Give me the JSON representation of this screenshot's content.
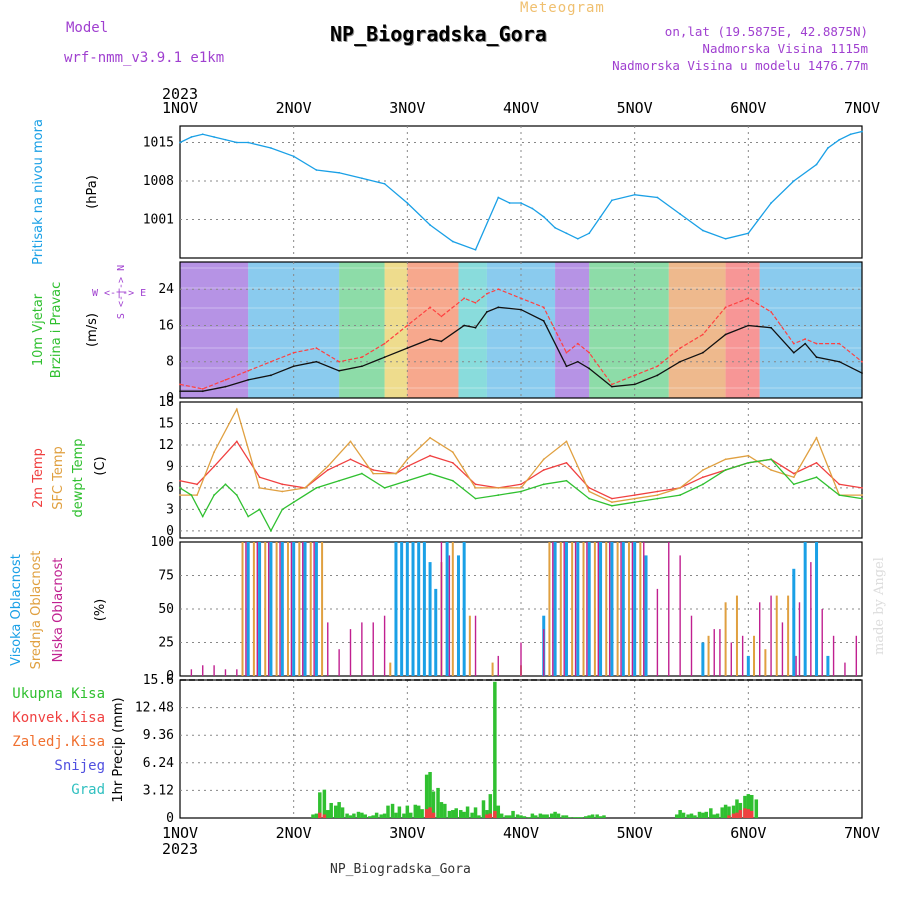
{
  "header": {
    "model_label": "Model",
    "model_value": "wrf-nmm_v3.9.1  e1km",
    "meteogram_label": "Meteogram",
    "station_title": "NP_Biogradska_Gora",
    "coords": "on,lat (19.5875E, 42.8875N)",
    "elevation": "Nadmorska Visina 1115m",
    "elevation_model": "Nadmorska Visina u modelu 1476.77m"
  },
  "footer": {
    "station_name": "NP_Biogradska_Gora",
    "signature": "made by Angel"
  },
  "axis": {
    "year": "2023",
    "ticks": [
      "1NOV",
      "2NOV",
      "3NOV",
      "4NOV",
      "5NOV",
      "6NOV",
      "7NOV"
    ]
  },
  "colors": {
    "pressure": "#1aa0e6",
    "wind_speed": "#111111",
    "gust": "#ff4040",
    "temp_2m": "#f04040",
    "temp_sfc": "#e0a040",
    "dewpoint": "#30c030",
    "cloud_high": "#1aa0e6",
    "cloud_mid": "#e0a040",
    "cloud_low": "#c02090",
    "precip_total": "#30c030",
    "precip_conv": "#f04040"
  },
  "chart_data": [
    {
      "type": "line",
      "panel": "pressure",
      "ylabel": [
        "Pritisak na nivou mora",
        "(hPa)"
      ],
      "yticks": [
        1001,
        1008,
        1015
      ],
      "ylim": [
        994,
        1018
      ],
      "xlim": [
        0,
        6
      ],
      "series": [
        {
          "name": "Pritisak na nivou mora",
          "x": [
            0,
            0.1,
            0.2,
            0.3,
            0.4,
            0.5,
            0.6,
            0.8,
            1.0,
            1.2,
            1.4,
            1.6,
            1.8,
            2.0,
            2.2,
            2.4,
            2.6,
            2.8,
            2.9,
            3.0,
            3.1,
            3.2,
            3.3,
            3.4,
            3.5,
            3.6,
            3.7,
            3.8,
            4.0,
            4.2,
            4.4,
            4.6,
            4.8,
            5.0,
            5.2,
            5.4,
            5.6,
            5.7,
            5.8,
            5.9,
            6.0
          ],
          "values": [
            1015,
            1016,
            1016.5,
            1016,
            1015.5,
            1015,
            1015,
            1014,
            1012.5,
            1010,
            1009.5,
            1008.5,
            1007.5,
            1004,
            1000,
            997,
            995.5,
            1005,
            1004,
            1004,
            1003,
            1001.5,
            999.5,
            998.5,
            997.5,
            998.5,
            1001.5,
            1004.5,
            1005.5,
            1005,
            1002,
            999,
            997.5,
            998.5,
            1004,
            1008,
            1011,
            1014,
            1015.5,
            1016.5,
            1017
          ]
        }
      ]
    },
    {
      "type": "line",
      "panel": "wind",
      "ylabel": [
        "10m Vjetar",
        "Brzina i Pravac",
        "(m/s)"
      ],
      "yticks": [
        0,
        8,
        16,
        24
      ],
      "ylim": [
        0,
        30
      ],
      "xlim": [
        0,
        6
      ],
      "series": [
        {
          "name": "Brzina",
          "x": [
            0,
            0.2,
            0.4,
            0.6,
            0.8,
            1.0,
            1.2,
            1.4,
            1.6,
            1.8,
            2.0,
            2.2,
            2.3,
            2.5,
            2.6,
            2.7,
            2.8,
            3.0,
            3.2,
            3.4,
            3.5,
            3.6,
            3.8,
            4.0,
            4.2,
            4.4,
            4.6,
            4.8,
            5.0,
            5.2,
            5.4,
            5.5,
            5.6,
            5.8,
            6.0
          ],
          "values": [
            1.5,
            1.5,
            2.5,
            4,
            5,
            7,
            8,
            6,
            7,
            9,
            11,
            13,
            12.5,
            16,
            15.5,
            19,
            20,
            19.5,
            17,
            7,
            8,
            6.5,
            2.5,
            3,
            5,
            8,
            10,
            14,
            16,
            15.5,
            10,
            12,
            9,
            8,
            5.5
          ]
        },
        {
          "name": "Udari",
          "x": [
            0,
            0.2,
            0.4,
            0.6,
            0.8,
            1.0,
            1.2,
            1.4,
            1.6,
            1.8,
            2.0,
            2.2,
            2.3,
            2.5,
            2.6,
            2.7,
            2.8,
            3.0,
            3.2,
            3.4,
            3.5,
            3.6,
            3.8,
            4.0,
            4.2,
            4.4,
            4.6,
            4.8,
            5.0,
            5.2,
            5.4,
            5.5,
            5.6,
            5.8,
            6.0
          ],
          "values": [
            3,
            2,
            4,
            6,
            8,
            10,
            11,
            8,
            9,
            12,
            16,
            20,
            18,
            22,
            21,
            23,
            24,
            22,
            20,
            10,
            12,
            10,
            3,
            5,
            7,
            11,
            14,
            20,
            22,
            19,
            12,
            13,
            12,
            12,
            8
          ]
        }
      ]
    },
    {
      "type": "line",
      "panel": "temperature",
      "ylabel": [
        "2m Temp",
        "SFC Temp",
        "dewpt Temp",
        "(C)"
      ],
      "yticks": [
        0,
        3,
        6,
        9,
        12,
        15,
        18
      ],
      "ylim": [
        -1,
        18
      ],
      "xlim": [
        0,
        6
      ],
      "series": [
        {
          "name": "2m Temp",
          "x": [
            0,
            0.15,
            0.3,
            0.5,
            0.7,
            0.9,
            1.1,
            1.3,
            1.5,
            1.7,
            1.9,
            2.0,
            2.2,
            2.4,
            2.6,
            2.8,
            3.0,
            3.2,
            3.4,
            3.6,
            3.8,
            4.0,
            4.2,
            4.4,
            4.6,
            4.8,
            5.0,
            5.2,
            5.4,
            5.6,
            5.8,
            6.0
          ],
          "values": [
            7,
            6.5,
            9,
            12.5,
            7.5,
            6.5,
            6,
            8.5,
            10,
            8.5,
            8,
            9,
            10.5,
            9.5,
            6.5,
            6,
            6.5,
            8.5,
            9.5,
            6,
            4.5,
            5,
            5.5,
            6,
            7.5,
            8.5,
            9.5,
            10,
            8,
            9.5,
            6.5,
            6
          ]
        },
        {
          "name": "SFC Temp",
          "x": [
            0,
            0.15,
            0.3,
            0.5,
            0.7,
            0.9,
            1.1,
            1.3,
            1.5,
            1.7,
            1.9,
            2.0,
            2.2,
            2.4,
            2.6,
            2.8,
            3.0,
            3.2,
            3.4,
            3.6,
            3.8,
            4.0,
            4.2,
            4.4,
            4.6,
            4.8,
            5.0,
            5.2,
            5.4,
            5.6,
            5.8,
            6.0
          ],
          "values": [
            5,
            5,
            11,
            17,
            6,
            5.5,
            6,
            9,
            12.5,
            8,
            8,
            10,
            13,
            11,
            6,
            6,
            6,
            10,
            12.5,
            5.5,
            4,
            4.5,
            5,
            6,
            8.5,
            10,
            10.5,
            8.5,
            7.5,
            13,
            5,
            5
          ]
        },
        {
          "name": "dewpt Temp",
          "x": [
            0,
            0.1,
            0.2,
            0.3,
            0.4,
            0.5,
            0.6,
            0.7,
            0.8,
            0.9,
            1.0,
            1.2,
            1.4,
            1.6,
            1.8,
            2.0,
            2.2,
            2.4,
            2.6,
            2.8,
            3.0,
            3.2,
            3.4,
            3.6,
            3.8,
            4.0,
            4.2,
            4.4,
            4.6,
            4.8,
            5.0,
            5.2,
            5.4,
            5.6,
            5.8,
            6.0
          ],
          "values": [
            6,
            5,
            2,
            5,
            6.5,
            5,
            2,
            3,
            0,
            3,
            4,
            6,
            7,
            8,
            6,
            7,
            8,
            7,
            4.5,
            5,
            5.5,
            6.5,
            7,
            4.5,
            3.5,
            4,
            4.5,
            5,
            6.5,
            8.5,
            9.5,
            10,
            6.5,
            7.5,
            5,
            4.5
          ]
        }
      ]
    },
    {
      "type": "bar",
      "panel": "clouds",
      "ylabel": [
        "Visoka Oblacnost",
        "Srednja Oblacnost",
        "Niska Oblacnost",
        "(%)"
      ],
      "yticks": [
        0,
        25,
        50,
        75,
        100
      ],
      "ylim": [
        0,
        100
      ],
      "xlim": [
        0,
        6
      ],
      "series": [
        {
          "name": "Visoka Oblacnost",
          "x": [
            0.6,
            0.7,
            0.8,
            0.9,
            1.0,
            1.1,
            1.2,
            1.9,
            1.95,
            2.0,
            2.05,
            2.1,
            2.15,
            2.2,
            2.25,
            2.35,
            2.45,
            2.5,
            3.2,
            3.3,
            3.4,
            3.5,
            3.6,
            3.7,
            3.8,
            3.9,
            4.0,
            4.1,
            4.6,
            5.0,
            5.4,
            5.5,
            5.6,
            5.7,
            6.0
          ],
          "values": [
            100,
            100,
            100,
            100,
            100,
            100,
            100,
            100,
            100,
            100,
            100,
            100,
            100,
            85,
            65,
            100,
            90,
            100,
            45,
            100,
            100,
            100,
            100,
            100,
            100,
            100,
            100,
            90,
            25,
            15,
            80,
            100,
            100,
            15,
            0
          ]
        },
        {
          "name": "Srednja Oblacnost",
          "x": [
            0.55,
            0.65,
            0.75,
            0.85,
            0.95,
            1.05,
            1.15,
            1.25,
            1.85,
            2.3,
            2.4,
            2.55,
            2.75,
            3.0,
            3.25,
            3.35,
            3.45,
            3.55,
            3.65,
            3.75,
            3.85,
            3.95,
            4.05,
            4.65,
            4.8,
            4.9,
            5.05,
            5.15,
            5.25,
            5.35
          ],
          "values": [
            100,
            100,
            100,
            100,
            100,
            100,
            100,
            100,
            10,
            85,
            100,
            45,
            10,
            8,
            100,
            100,
            100,
            100,
            100,
            100,
            100,
            100,
            100,
            30,
            55,
            60,
            30,
            20,
            60,
            60
          ]
        },
        {
          "name": "Niska Oblacnost",
          "x": [
            0.1,
            0.2,
            0.3,
            0.4,
            0.5,
            0.58,
            0.68,
            0.78,
            0.88,
            0.98,
            1.08,
            1.18,
            1.3,
            1.4,
            1.5,
            1.6,
            1.7,
            1.8,
            2.3,
            2.37,
            2.6,
            2.8,
            3.0,
            3.2,
            3.28,
            3.38,
            3.48,
            3.58,
            3.68,
            3.78,
            3.88,
            3.98,
            4.08,
            4.2,
            4.3,
            4.4,
            4.5,
            4.7,
            4.75,
            4.85,
            4.95,
            5.1,
            5.2,
            5.3,
            5.42,
            5.45,
            5.55,
            5.65,
            5.75,
            5.85,
            5.95
          ],
          "values": [
            5,
            8,
            8,
            5,
            5,
            100,
            100,
            100,
            100,
            100,
            100,
            100,
            40,
            20,
            35,
            40,
            40,
            45,
            100,
            90,
            45,
            15,
            25,
            35,
            100,
            100,
            100,
            100,
            100,
            100,
            100,
            100,
            100,
            65,
            100,
            90,
            45,
            35,
            35,
            25,
            30,
            55,
            60,
            40,
            15,
            55,
            85,
            50,
            30,
            10,
            30
          ]
        }
      ]
    },
    {
      "type": "bar",
      "panel": "precipitation",
      "ylabel": [
        "1hr Precip (mm)"
      ],
      "legend": [
        "Ukupna Kisa",
        "Konvek.Kisa",
        "Zaledj.Kisa",
        "Snijeg",
        "Grad"
      ],
      "yticks": [
        0,
        3.12,
        6.24,
        9.36,
        12.48,
        15.6
      ],
      "ylim": [
        0,
        15.6
      ],
      "xlim": [
        0,
        6
      ],
      "series": [
        {
          "name": "Ukupna Kisa",
          "x": [
            1.17,
            1.2,
            1.23,
            1.27,
            1.3,
            1.33,
            1.37,
            1.4,
            1.43,
            1.47,
            1.5,
            1.53,
            1.57,
            1.6,
            1.63,
            1.67,
            1.7,
            1.73,
            1.77,
            1.8,
            1.83,
            1.87,
            1.9,
            1.93,
            1.97,
            2.0,
            2.03,
            2.07,
            2.1,
            2.13,
            2.17,
            2.2,
            2.23,
            2.27,
            2.3,
            2.33,
            2.37,
            2.4,
            2.43,
            2.47,
            2.5,
            2.53,
            2.57,
            2.6,
            2.63,
            2.67,
            2.7,
            2.73,
            2.77,
            2.8,
            2.83,
            2.87,
            2.9,
            2.93,
            2.97,
            3.0,
            3.03,
            3.07,
            3.1,
            3.13,
            3.17,
            3.2,
            3.23,
            3.27,
            3.3,
            3.33,
            3.37,
            3.4,
            3.43,
            3.47,
            3.5,
            3.53,
            3.57,
            3.6,
            3.63,
            3.67,
            3.7,
            3.73,
            4.37,
            4.4,
            4.43,
            4.47,
            4.5,
            4.53,
            4.57,
            4.6,
            4.63,
            4.67,
            4.7,
            4.73,
            4.77,
            4.8,
            4.83,
            4.87,
            4.9,
            4.93,
            4.97,
            5.0,
            5.03,
            5.07
          ],
          "values": [
            0.4,
            0.5,
            2.9,
            3.2,
            0.9,
            1.7,
            1.4,
            1.8,
            1.2,
            0.5,
            0.3,
            0.5,
            0.7,
            0.6,
            0.4,
            0.2,
            0.3,
            0.6,
            0.4,
            0.5,
            1.4,
            1.6,
            0.6,
            1.3,
            0.5,
            1.4,
            0.6,
            1.5,
            1.4,
            1.0,
            4.9,
            5.2,
            3.0,
            3.4,
            1.8,
            1.6,
            0.8,
            0.9,
            1.1,
            0.9,
            0.7,
            1.3,
            0.6,
            1.2,
            0.3,
            2.0,
            0.9,
            2.7,
            15.4,
            1.4,
            0.5,
            0.3,
            0.3,
            0.8,
            0.4,
            0.3,
            0.2,
            0.1,
            0.5,
            0.3,
            0.5,
            0.4,
            0.4,
            0.5,
            0.7,
            0.5,
            0.3,
            0.3,
            0.1,
            0.1,
            0.1,
            0.1,
            0.2,
            0.3,
            0.4,
            0.4,
            0.2,
            0.3,
            0.4,
            0.9,
            0.6,
            0.4,
            0.5,
            0.3,
            0.7,
            0.6,
            0.7,
            1.1,
            0.4,
            0.5,
            1.2,
            1.5,
            1.3,
            1.4,
            2.1,
            1.7,
            2.5,
            2.7,
            2.6,
            2.1
          ]
        },
        {
          "name": "Konvek.Kisa",
          "x": [
            1.23,
            1.27,
            2.17,
            2.2,
            2.23,
            2.7,
            2.73,
            2.77,
            4.83,
            4.87,
            4.9,
            4.93,
            4.97,
            5.0,
            5.03
          ],
          "values": [
            0.6,
            0.4,
            1.0,
            1.2,
            0.6,
            0.4,
            0.5,
            0.8,
            0.3,
            0.5,
            0.6,
            0.9,
            1.1,
            1.0,
            0.8
          ]
        }
      ]
    }
  ]
}
